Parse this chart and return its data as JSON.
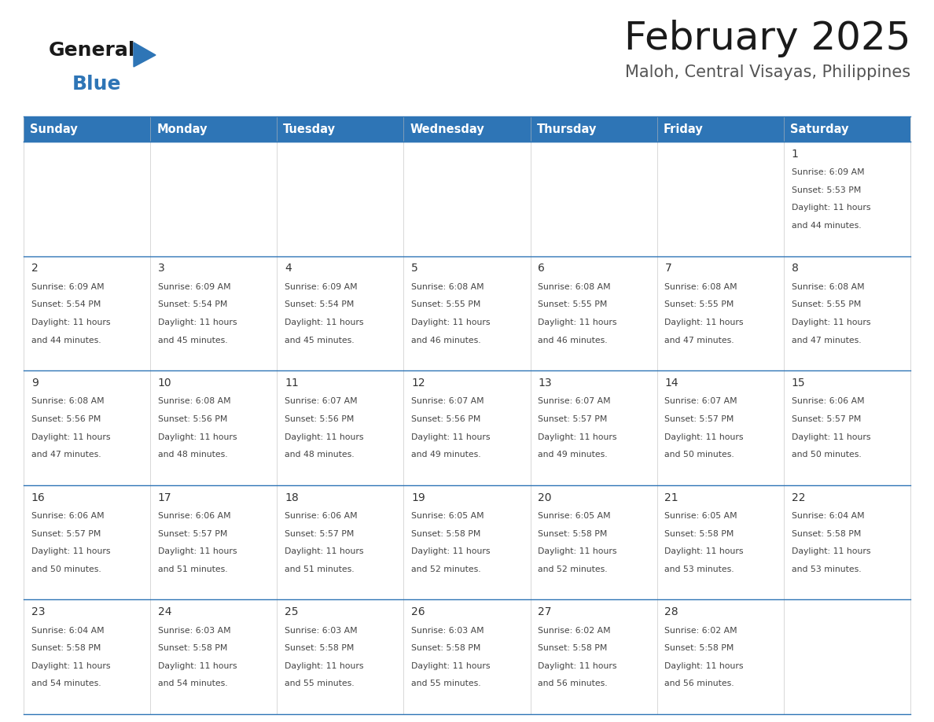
{
  "title": "February 2025",
  "subtitle": "Maloh, Central Visayas, Philippines",
  "header_color": "#2E75B6",
  "header_text_color": "#FFFFFF",
  "weekdays": [
    "Sunday",
    "Monday",
    "Tuesday",
    "Wednesday",
    "Thursday",
    "Friday",
    "Saturday"
  ],
  "days": [
    {
      "day": 1,
      "col": 6,
      "row": 0,
      "sunrise": "6:09 AM",
      "sunset": "5:53 PM",
      "daylight": "11 hours and 44 minutes"
    },
    {
      "day": 2,
      "col": 0,
      "row": 1,
      "sunrise": "6:09 AM",
      "sunset": "5:54 PM",
      "daylight": "11 hours and 44 minutes"
    },
    {
      "day": 3,
      "col": 1,
      "row": 1,
      "sunrise": "6:09 AM",
      "sunset": "5:54 PM",
      "daylight": "11 hours and 45 minutes"
    },
    {
      "day": 4,
      "col": 2,
      "row": 1,
      "sunrise": "6:09 AM",
      "sunset": "5:54 PM",
      "daylight": "11 hours and 45 minutes"
    },
    {
      "day": 5,
      "col": 3,
      "row": 1,
      "sunrise": "6:08 AM",
      "sunset": "5:55 PM",
      "daylight": "11 hours and 46 minutes"
    },
    {
      "day": 6,
      "col": 4,
      "row": 1,
      "sunrise": "6:08 AM",
      "sunset": "5:55 PM",
      "daylight": "11 hours and 46 minutes"
    },
    {
      "day": 7,
      "col": 5,
      "row": 1,
      "sunrise": "6:08 AM",
      "sunset": "5:55 PM",
      "daylight": "11 hours and 47 minutes"
    },
    {
      "day": 8,
      "col": 6,
      "row": 1,
      "sunrise": "6:08 AM",
      "sunset": "5:55 PM",
      "daylight": "11 hours and 47 minutes"
    },
    {
      "day": 9,
      "col": 0,
      "row": 2,
      "sunrise": "6:08 AM",
      "sunset": "5:56 PM",
      "daylight": "11 hours and 47 minutes"
    },
    {
      "day": 10,
      "col": 1,
      "row": 2,
      "sunrise": "6:08 AM",
      "sunset": "5:56 PM",
      "daylight": "11 hours and 48 minutes"
    },
    {
      "day": 11,
      "col": 2,
      "row": 2,
      "sunrise": "6:07 AM",
      "sunset": "5:56 PM",
      "daylight": "11 hours and 48 minutes"
    },
    {
      "day": 12,
      "col": 3,
      "row": 2,
      "sunrise": "6:07 AM",
      "sunset": "5:56 PM",
      "daylight": "11 hours and 49 minutes"
    },
    {
      "day": 13,
      "col": 4,
      "row": 2,
      "sunrise": "6:07 AM",
      "sunset": "5:57 PM",
      "daylight": "11 hours and 49 minutes"
    },
    {
      "day": 14,
      "col": 5,
      "row": 2,
      "sunrise": "6:07 AM",
      "sunset": "5:57 PM",
      "daylight": "11 hours and 50 minutes"
    },
    {
      "day": 15,
      "col": 6,
      "row": 2,
      "sunrise": "6:06 AM",
      "sunset": "5:57 PM",
      "daylight": "11 hours and 50 minutes"
    },
    {
      "day": 16,
      "col": 0,
      "row": 3,
      "sunrise": "6:06 AM",
      "sunset": "5:57 PM",
      "daylight": "11 hours and 50 minutes"
    },
    {
      "day": 17,
      "col": 1,
      "row": 3,
      "sunrise": "6:06 AM",
      "sunset": "5:57 PM",
      "daylight": "11 hours and 51 minutes"
    },
    {
      "day": 18,
      "col": 2,
      "row": 3,
      "sunrise": "6:06 AM",
      "sunset": "5:57 PM",
      "daylight": "11 hours and 51 minutes"
    },
    {
      "day": 19,
      "col": 3,
      "row": 3,
      "sunrise": "6:05 AM",
      "sunset": "5:58 PM",
      "daylight": "11 hours and 52 minutes"
    },
    {
      "day": 20,
      "col": 4,
      "row": 3,
      "sunrise": "6:05 AM",
      "sunset": "5:58 PM",
      "daylight": "11 hours and 52 minutes"
    },
    {
      "day": 21,
      "col": 5,
      "row": 3,
      "sunrise": "6:05 AM",
      "sunset": "5:58 PM",
      "daylight": "11 hours and 53 minutes"
    },
    {
      "day": 22,
      "col": 6,
      "row": 3,
      "sunrise": "6:04 AM",
      "sunset": "5:58 PM",
      "daylight": "11 hours and 53 minutes"
    },
    {
      "day": 23,
      "col": 0,
      "row": 4,
      "sunrise": "6:04 AM",
      "sunset": "5:58 PM",
      "daylight": "11 hours and 54 minutes"
    },
    {
      "day": 24,
      "col": 1,
      "row": 4,
      "sunrise": "6:03 AM",
      "sunset": "5:58 PM",
      "daylight": "11 hours and 54 minutes"
    },
    {
      "day": 25,
      "col": 2,
      "row": 4,
      "sunrise": "6:03 AM",
      "sunset": "5:58 PM",
      "daylight": "11 hours and 55 minutes"
    },
    {
      "day": 26,
      "col": 3,
      "row": 4,
      "sunrise": "6:03 AM",
      "sunset": "5:58 PM",
      "daylight": "11 hours and 55 minutes"
    },
    {
      "day": 27,
      "col": 4,
      "row": 4,
      "sunrise": "6:02 AM",
      "sunset": "5:58 PM",
      "daylight": "11 hours and 56 minutes"
    },
    {
      "day": 28,
      "col": 5,
      "row": 4,
      "sunrise": "6:02 AM",
      "sunset": "5:58 PM",
      "daylight": "11 hours and 56 minutes"
    }
  ],
  "num_rows": 5,
  "num_cols": 7,
  "background_color": "#FFFFFF",
  "grid_line_color": "#2E75B6",
  "text_color": "#444444",
  "day_number_color": "#333333",
  "logo_general_color": "#1a1a1a",
  "logo_blue_color": "#2E75B6",
  "title_fontsize": 36,
  "subtitle_fontsize": 15,
  "day_num_fontsize": 10,
  "cell_text_fontsize": 7.8,
  "header_fontsize": 10.5
}
